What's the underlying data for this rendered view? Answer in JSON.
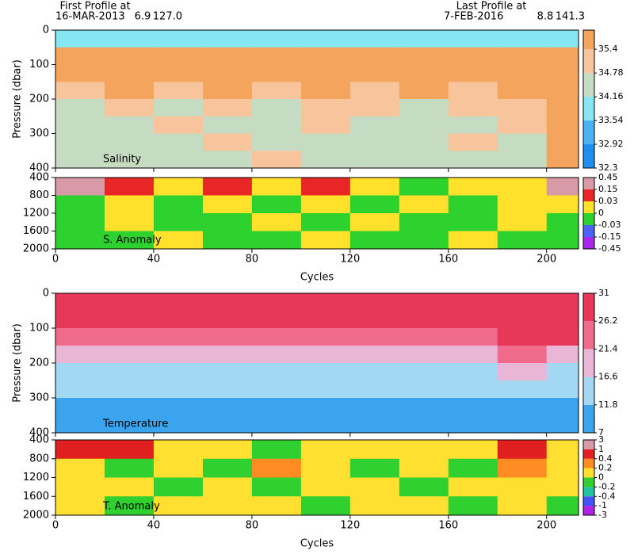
{
  "header": {
    "first_label": "First Profile at",
    "first_date": "16-MAR-2013",
    "first_lat": "6.9",
    "first_lon": "127.0",
    "last_label": "Last Profile at",
    "last_date": "7-FEB-2016",
    "last_lat": "8.8",
    "last_lon": "141.3"
  },
  "chart_data": [
    {
      "type": "heatmap",
      "title": "Salinity",
      "ylabel": "Pressure (dbar)",
      "xlim": [
        0,
        213
      ],
      "xticks": [
        0,
        40,
        80,
        120,
        160,
        200
      ],
      "ylim": [
        0,
        400
      ],
      "yticks": [
        0,
        100,
        200,
        300,
        400
      ],
      "x_bins": [
        0,
        20,
        40,
        60,
        80,
        100,
        120,
        140,
        160,
        180,
        200,
        213
      ],
      "y_bins": [
        0,
        50,
        100,
        150,
        200,
        250,
        300,
        350,
        400
      ],
      "values": [
        [
          33.9,
          33.9,
          33.9,
          33.9,
          33.9,
          33.9,
          33.9,
          33.9,
          33.9,
          33.9,
          33.9
        ],
        [
          35.6,
          35.6,
          35.6,
          35.6,
          35.6,
          35.6,
          35.6,
          35.6,
          35.6,
          35.6,
          35.6
        ],
        [
          35.6,
          35.6,
          35.5,
          35.6,
          35.6,
          35.6,
          35.5,
          35.6,
          35.6,
          35.6,
          35.6
        ],
        [
          35.1,
          35.5,
          35.1,
          35.5,
          35.1,
          35.5,
          35.1,
          35.5,
          35.1,
          35.5,
          35.5
        ],
        [
          34.5,
          35.1,
          34.5,
          35.1,
          34.5,
          35.1,
          35.1,
          34.5,
          35.1,
          35.1,
          35.5
        ],
        [
          34.5,
          34.5,
          35.1,
          34.5,
          34.5,
          35.1,
          34.5,
          34.5,
          34.5,
          35.1,
          35.5
        ],
        [
          34.5,
          34.5,
          34.5,
          35.1,
          34.5,
          34.5,
          34.5,
          34.5,
          35.1,
          34.5,
          35.5
        ],
        [
          34.5,
          34.5,
          34.5,
          34.5,
          35.1,
          34.5,
          34.5,
          34.5,
          34.5,
          34.5,
          35.5
        ]
      ],
      "colorbar": {
        "scale": "linear",
        "clim": [
          32.3,
          35.9
        ],
        "ticks": [
          32.3,
          32.92,
          33.54,
          34.16,
          34.78,
          35.4
        ],
        "colors": [
          "#1e8ef0",
          "#48b4f4",
          "#86e6f2",
          "#c6dcc2",
          "#f8c49c",
          "#f4a45c"
        ]
      }
    },
    {
      "type": "heatmap",
      "title": "S. Anomaly",
      "xlabel": "Cycles",
      "xlim": [
        0,
        213
      ],
      "xticks": [
        0,
        40,
        80,
        120,
        160,
        200
      ],
      "ylim": [
        400,
        2000
      ],
      "yticks": [
        400,
        800,
        1200,
        1600,
        2000
      ],
      "x_bins": [
        0,
        20,
        40,
        60,
        80,
        100,
        120,
        140,
        160,
        180,
        200,
        213
      ],
      "y_bins": [
        400,
        800,
        1200,
        1600,
        2000
      ],
      "values": [
        [
          0.2,
          0.1,
          0.01,
          0.1,
          0.01,
          0.1,
          0.01,
          -0.01,
          0.01,
          0.01,
          0.2
        ],
        [
          -0.01,
          0.01,
          -0.01,
          0.01,
          -0.01,
          0.01,
          -0.01,
          0.01,
          -0.01,
          0.01,
          0.01
        ],
        [
          -0.01,
          0.01,
          -0.01,
          -0.01,
          0.01,
          -0.01,
          0.01,
          -0.01,
          -0.01,
          0.01,
          -0.01
        ],
        [
          -0.01,
          -0.01,
          0.01,
          -0.01,
          -0.01,
          0.01,
          -0.01,
          -0.01,
          0.01,
          -0.01,
          -0.01
        ]
      ],
      "colorbar": {
        "scale": "even",
        "ticks": [
          -0.45,
          -0.15,
          -0.03,
          0,
          0.03,
          0.15,
          0.45
        ],
        "colors": [
          "#a828e8",
          "#4a62f6",
          "#2ed22e",
          "#ffe02a",
          "#e82626",
          "#d89aa6"
        ]
      }
    },
    {
      "type": "heatmap",
      "title": "Temperature",
      "ylabel": "Pressure (dbar)",
      "xlim": [
        0,
        213
      ],
      "xticks": [
        0,
        40,
        80,
        120,
        160,
        200
      ],
      "ylim": [
        0,
        400
      ],
      "yticks": [
        0,
        100,
        200,
        300,
        400
      ],
      "x_bins": [
        0,
        20,
        40,
        60,
        80,
        100,
        120,
        140,
        160,
        180,
        200,
        213
      ],
      "y_bins": [
        0,
        50,
        100,
        150,
        200,
        250,
        300,
        350,
        400
      ],
      "values": [
        [
          28,
          28,
          28,
          28,
          28,
          28,
          28,
          28,
          28,
          28,
          28
        ],
        [
          28,
          27,
          28,
          27,
          28,
          28,
          27,
          28,
          27,
          28,
          28
        ],
        [
          24,
          23,
          24,
          24,
          23,
          24,
          24,
          23,
          24,
          27,
          27
        ],
        [
          19,
          18,
          19,
          20,
          18,
          19,
          19,
          18,
          19,
          22,
          21
        ],
        [
          14,
          14,
          15,
          14,
          14,
          15,
          14,
          14,
          15,
          17,
          16
        ],
        [
          12.5,
          12.5,
          12.5,
          12.5,
          12.5,
          12.5,
          12.5,
          12.5,
          12.5,
          13,
          12.5
        ],
        [
          9.5,
          9.5,
          10,
          9.5,
          9.5,
          10,
          9.5,
          9.5,
          9.5,
          10,
          9.5
        ],
        [
          9,
          9,
          9,
          9,
          9,
          9,
          9,
          9,
          9,
          9,
          9
        ]
      ],
      "colorbar": {
        "scale": "linear",
        "clim": [
          7,
          31
        ],
        "ticks": [
          7,
          11.8,
          16.6,
          21.4,
          26.2,
          31
        ],
        "colors": [
          "#3aa4ee",
          "#a2d8f2",
          "#eab6d6",
          "#f06a8c",
          "#e8385a"
        ]
      }
    },
    {
      "type": "heatmap",
      "title": "T. Anomaly",
      "xlabel": "Cycles",
      "xlim": [
        0,
        213
      ],
      "xticks": [
        0,
        40,
        80,
        120,
        160,
        200
      ],
      "ylim": [
        400,
        2000
      ],
      "yticks": [
        400,
        800,
        1200,
        1600,
        2000
      ],
      "x_bins": [
        0,
        20,
        40,
        60,
        80,
        100,
        120,
        140,
        160,
        180,
        200,
        213
      ],
      "y_bins": [
        400,
        800,
        1200,
        1600,
        2000
      ],
      "values": [
        [
          0.5,
          0.5,
          0.1,
          0.1,
          -0.1,
          0.1,
          0.1,
          0.1,
          0.1,
          0.5,
          0.1
        ],
        [
          0.1,
          -0.1,
          0.1,
          -0.1,
          0.3,
          0.1,
          -0.1,
          0.1,
          -0.1,
          0.3,
          0.1
        ],
        [
          0.1,
          0.1,
          -0.1,
          0.1,
          -0.1,
          0.1,
          0.1,
          -0.1,
          0.1,
          0.1,
          0.1
        ],
        [
          0.1,
          -0.1,
          0.1,
          0.1,
          0.1,
          -0.1,
          0.1,
          0.1,
          -0.1,
          0.1,
          -0.1
        ]
      ],
      "colorbar": {
        "scale": "even",
        "ticks": [
          -3,
          -1,
          -0.4,
          -0.2,
          0,
          0.2,
          0.4,
          1,
          3
        ],
        "colors": [
          "#b024e0",
          "#4452f8",
          "#22c2a2",
          "#30d030",
          "#ffe030",
          "#ff8c22",
          "#e02020",
          "#d89aa8"
        ]
      }
    }
  ]
}
